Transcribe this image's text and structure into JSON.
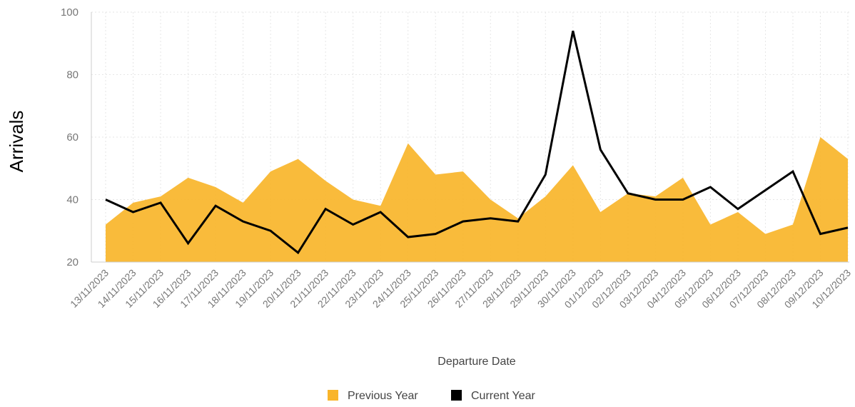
{
  "chart_data": {
    "type": "area",
    "title": "",
    "xlabel": "Departure Date",
    "ylabel": "Arrivals",
    "ylim": [
      20,
      100
    ],
    "yticks": [
      20,
      40,
      60,
      80,
      100
    ],
    "grid": true,
    "legend_position": "bottom",
    "categories": [
      "13/11/2023",
      "14/11/2023",
      "15/11/2023",
      "16/11/2023",
      "17/11/2023",
      "18/11/2023",
      "19/11/2023",
      "20/11/2023",
      "21/11/2023",
      "22/11/2023",
      "23/11/2023",
      "24/11/2023",
      "25/11/2023",
      "26/11/2023",
      "27/11/2023",
      "28/11/2023",
      "29/11/2023",
      "30/11/2023",
      "01/12/2023",
      "02/12/2023",
      "03/12/2023",
      "04/12/2023",
      "05/12/2023",
      "06/12/2023",
      "07/12/2023",
      "08/12/2023",
      "09/12/2023",
      "10/12/2023"
    ],
    "series": [
      {
        "name": "Previous Year",
        "render": "area",
        "color": "#f9b52a",
        "values": [
          32,
          39,
          41,
          47,
          44,
          39,
          49,
          53,
          46,
          40,
          38,
          58,
          48,
          49,
          40,
          34,
          41,
          51,
          36,
          42,
          41,
          47,
          32,
          36,
          29,
          32,
          60,
          53
        ]
      },
      {
        "name": "Current Year",
        "render": "line",
        "color": "#000000",
        "values": [
          40,
          36,
          39,
          26,
          38,
          33,
          30,
          23,
          37,
          32,
          36,
          28,
          29,
          33,
          34,
          33,
          48,
          94,
          56,
          42,
          40,
          40,
          44,
          37,
          43,
          49,
          29,
          31
        ]
      }
    ]
  }
}
